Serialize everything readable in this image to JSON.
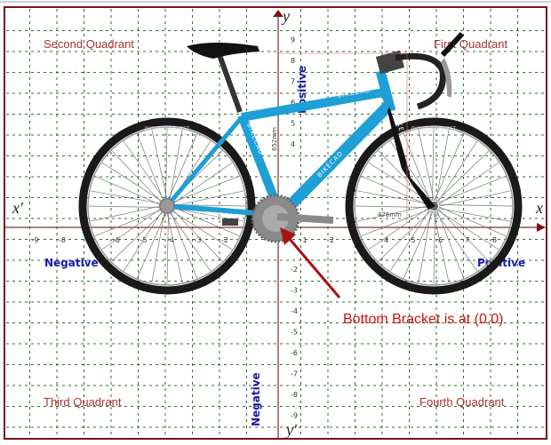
{
  "quadrants": {
    "first": "First Quadrant",
    "second": "Second  Quadrant",
    "third": "Third Quadrant",
    "fourth": "Fourth  Quadrant"
  },
  "signs": {
    "y_positive": "Positive",
    "y_negative": "Negative",
    "x_negative": "Negative",
    "x_positive": "Positive"
  },
  "axes": {
    "x": "x",
    "x_prime": "x'",
    "y": "y",
    "y_prime": "y'"
  },
  "x_ticks": [
    -9,
    -8,
    -7,
    -6,
    -5,
    -4,
    -3,
    -2,
    1,
    2,
    4,
    5,
    6,
    7,
    8
  ],
  "y_ticks": [
    9,
    8,
    7,
    6,
    5,
    4,
    -2,
    -3,
    -4,
    -5,
    -6,
    -7,
    -8,
    -9
  ],
  "bike": {
    "brand": "BIKECAD",
    "tire_brand": "BICYCLE FOREST",
    "frame_color": "#1e9fd6"
  },
  "dimensions": {
    "stack": "652mm",
    "reach": "476mm"
  },
  "annotation": "Bottom Bracket is at (0,0)",
  "colors": {
    "frame_border": "#7a1414",
    "grid": "#2f6e2f",
    "axis": "#7a3030",
    "arrow": "#aa1111"
  }
}
